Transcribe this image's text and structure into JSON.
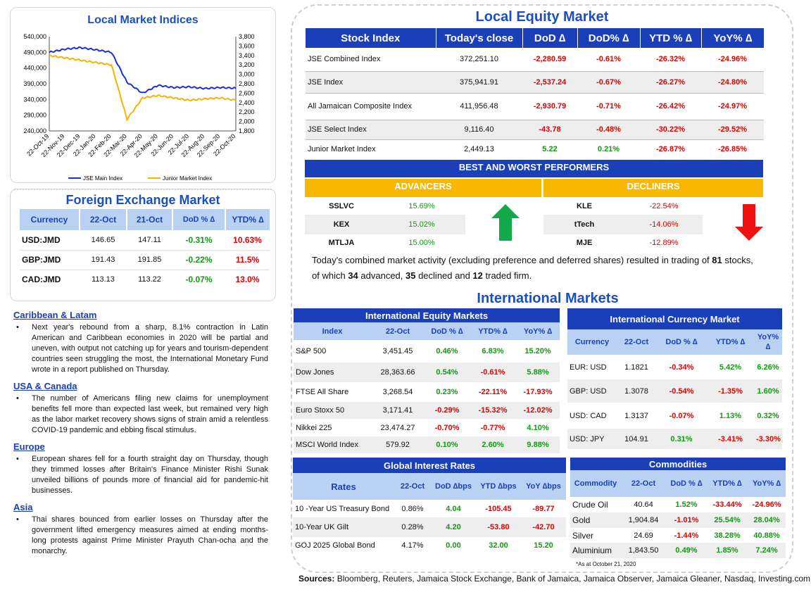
{
  "lmi": {
    "title": "Local Market Indices",
    "y_left": [
      "540,000",
      "490,000",
      "440,000",
      "390,000",
      "340,000",
      "290,000",
      "240,000"
    ],
    "y_right": [
      "3,800",
      "3,600",
      "3,400",
      "3,200",
      "3,000",
      "2,800",
      "2,600",
      "2,400",
      "2,200",
      "2,000",
      "1,800"
    ],
    "x_labels": [
      "22-Oct-19",
      "22-Nov-19",
      "22-Dec-19",
      "22-Jan-20",
      "22-Feb-20",
      "22-Mar-20",
      "22-Apr-20",
      "22-May-20",
      "22-Jun-20",
      "22-Jul-20",
      "22-Aug-20",
      "22-Sep-20",
      "22-Oct-20"
    ],
    "legend": [
      "JSE Main Index",
      "Junior Market Index"
    ],
    "colors": [
      "#1f2fd6",
      "#f4b400"
    ]
  },
  "chart_data": {
    "type": "line",
    "title": "Local Market Indices",
    "x": [
      "22-Oct-19",
      "22-Nov-19",
      "22-Dec-19",
      "22-Jan-20",
      "22-Feb-20",
      "22-Mar-20",
      "22-Apr-20",
      "22-May-20",
      "22-Jun-20",
      "22-Jul-20",
      "22-Aug-20",
      "22-Sep-20",
      "22-Oct-20"
    ],
    "ylim": [
      240000,
      540000
    ],
    "y2lim": [
      1800,
      3800
    ],
    "series": [
      {
        "name": "JSE Main Index",
        "axis": "left",
        "values": [
          490000,
          500000,
          505000,
          498000,
          490000,
          395000,
          360000,
          385000,
          378000,
          380000,
          375000,
          378000,
          376000
        ]
      },
      {
        "name": "Junior Market Index",
        "axis": "right",
        "values": [
          3400,
          3350,
          3300,
          3250,
          3200,
          2050,
          2500,
          2550,
          2500,
          2450,
          2480,
          2500,
          2450
        ]
      }
    ]
  },
  "lem": {
    "title": "Local Equity Market",
    "headers": [
      "Stock Index",
      "Today's close",
      "DoD  ∆",
      "DoD% ∆",
      "YTD % ∆",
      "YoY% ∆"
    ],
    "rows": [
      {
        "name": "JSE Combined Index",
        "close": "372,251.10",
        "dod": "-2,280.59",
        "dodp": "-0.61%",
        "ytd": "-26.32%",
        "yoy": "-24.96%"
      },
      {
        "name": "JSE Index",
        "close": "375,941.91",
        "dod": "-2,537.24",
        "dodp": "-0.67%",
        "ytd": "-26.27%",
        "yoy": "-24.80%"
      },
      {
        "name": "All Jamaican Composite Index",
        "close": "411,956.48",
        "dod": "-2,930.79",
        "dodp": "-0.71%",
        "ytd": "-26.42%",
        "yoy": "-24.97%"
      },
      {
        "name": "JSE Select Index",
        "close": "9,116.40",
        "dod": "-43.78",
        "dodp": "-0.48%",
        "ytd": "-30.22%",
        "yoy": "-29.52%"
      },
      {
        "name": "Junior Market Index",
        "close": "2,449.13",
        "dod": "5.22",
        "dodp": "0.21%",
        "ytd": "-26.87%",
        "yoy": "-26.85%"
      }
    ],
    "bw_title": "BEST AND WORST PERFORMERS",
    "adv_title": "ADVANCERS",
    "dec_title": "DECLINERS",
    "advancers": [
      {
        "t": "SSLVC",
        "v": "15.69%"
      },
      {
        "t": "KEX",
        "v": "15.02%"
      },
      {
        "t": "MTLJA",
        "v": "15.00%"
      }
    ],
    "decliners": [
      {
        "t": "KLE",
        "v": "-22.54%"
      },
      {
        "t": "tTech",
        "v": "-14.06%"
      },
      {
        "t": "MJE",
        "v": "-12.89%"
      }
    ],
    "summary_a": "Today's combined market activity (excluding preference and deferred shares) resulted in trading of ",
    "n_total": "81",
    "summary_b": " stocks, of which ",
    "n_adv": "34",
    "summary_c": " advanced, ",
    "n_dec": "35",
    "summary_d": " declined and ",
    "n_firm": "12",
    "summary_e": " traded firm."
  },
  "fx": {
    "title": "Foreign Exchange Market",
    "headers": [
      "Currency",
      "22-Oct",
      "21-Oct",
      "DoD % ∆",
      "YTD% ∆"
    ],
    "rows": [
      {
        "c": "USD:JMD",
        "a": "146.65",
        "b": "147.11",
        "d": "-0.31%",
        "y": "10.63%"
      },
      {
        "c": "GBP:JMD",
        "a": "191.43",
        "b": "191.85",
        "d": "-0.22%",
        "y": "11.5%"
      },
      {
        "c": "CAD:JMD",
        "a": "113.13",
        "b": "113.22",
        "d": "-0.07%",
        "y": "13.0%"
      }
    ]
  },
  "news": [
    {
      "h": "Caribbean & Latam",
      "p": "Next year's rebound from a sharp, 8.1% contraction in Latin American and Caribbean economies in 2020 will be partial and uneven, with output not catching up for years and tourism-dependent countries seen struggling the most, the International Monetary Fund wrote in a report published on Thursday."
    },
    {
      "h": "USA & Canada",
      "p": "The number of Americans filing new claims for unemployment benefits fell more than expected last week, but remained very high as the labor market recovery shows signs of strain amid a relentless COVID-19 pandemic and ebbing fiscal stimulus."
    },
    {
      "h": "Europe",
      "p": "European shares fell for a fourth straight day on Thursday, though they trimmed losses after Britain's Finance Minister Rishi Sunak unveiled billions of pounds more of financial aid for pandemic-hit businesses."
    },
    {
      "h": "Asia",
      "p": "Thai shares bounced from earlier losses on Thursday after the government lifted emergency measures aimed at ending months-long protests against Prime Minister Prayuth Chan-ocha and the monarchy."
    }
  ],
  "intl": {
    "title": "International Markets",
    "eq": {
      "title": "International Equity Markets",
      "headers": [
        "Index",
        "22-Oct",
        "DoD % ∆",
        "YTD% ∆",
        "YoY% ∆"
      ],
      "rows": [
        [
          "S&P 500",
          "3,451.45",
          "0.46%",
          "6.83%",
          "15.20%"
        ],
        [
          "Dow Jones",
          "28,363.66",
          "0.54%",
          "-0.61%",
          "5.88%"
        ],
        [
          "FTSE All Share",
          "3,268.54",
          "0.23%",
          "-22.11%",
          "-17.93%"
        ],
        [
          "Euro Stoxx 50",
          "3,171.41",
          "-0.29%",
          "-15.32%",
          "-12.02%"
        ],
        [
          "Nikkei 225",
          "23,474.27",
          "-0.70%",
          "-0.77%",
          "4.10%"
        ],
        [
          "MSCI World Index",
          "579.92",
          "0.10%",
          "2.60%",
          "9.88%"
        ]
      ]
    },
    "cur": {
      "title": "International Currency Market",
      "headers": [
        "Currency",
        "22-Oct",
        "DoD % ∆",
        "YTD% ∆",
        "YoY% ∆"
      ],
      "rows": [
        [
          "EUR: USD",
          "1.1821",
          "-0.34%",
          "5.42%",
          "6.26%"
        ],
        [
          "GBP: USD",
          "1.3078",
          "-0.54%",
          "-1.35%",
          "1.60%"
        ],
        [
          "USD: CAD",
          "1.3137",
          "-0.07%",
          "1.13%",
          "0.32%"
        ],
        [
          "USD: JPY",
          "104.91",
          "0.31%",
          "-3.41%",
          "-3.30%"
        ]
      ]
    },
    "rates": {
      "title": "Global Interest Rates",
      "headers": [
        "Rates",
        "22-Oct",
        "DoD ∆bps",
        "YTD ∆bps",
        "YoY ∆bps"
      ],
      "rows": [
        [
          "10 -Year US Treasury Bond",
          "0.86%",
          "4.04",
          "-105.45",
          "-89.77"
        ],
        [
          "10-Year UK Gilt",
          "0.28%",
          "4.20",
          "-53.80",
          "-42.70"
        ],
        [
          "GOJ 2025 Global Bond",
          "4.17%",
          "0.00",
          "32.00",
          "15.20"
        ]
      ]
    },
    "com": {
      "title": "Commodities",
      "headers": [
        "Commodity",
        "22-Oct",
        "DoD % ∆",
        "YTD% ∆",
        "YoY% ∆"
      ],
      "rows": [
        [
          "Crude Oil",
          "40.64",
          "1.52%",
          "-33.44%",
          "-24.96%"
        ],
        [
          "Gold",
          "1,904.84",
          "-1.01%",
          "25.54%",
          "28.04%"
        ],
        [
          "Silver",
          "24.69",
          "-1.44%",
          "38.28%",
          "40.88%"
        ],
        [
          "Aluminium",
          "1,843.50",
          "0.49%",
          "1.85%",
          "7.24%"
        ]
      ],
      "note": "*As at October 21, 2020"
    }
  },
  "sources_label": "Sources:",
  "sources_text": " Bloomberg, Reuters, Jamaica Stock Exchange, Bank of Jamaica, Jamaica Observer, Jamaica Gleaner, Nasdaq, Investing.com"
}
